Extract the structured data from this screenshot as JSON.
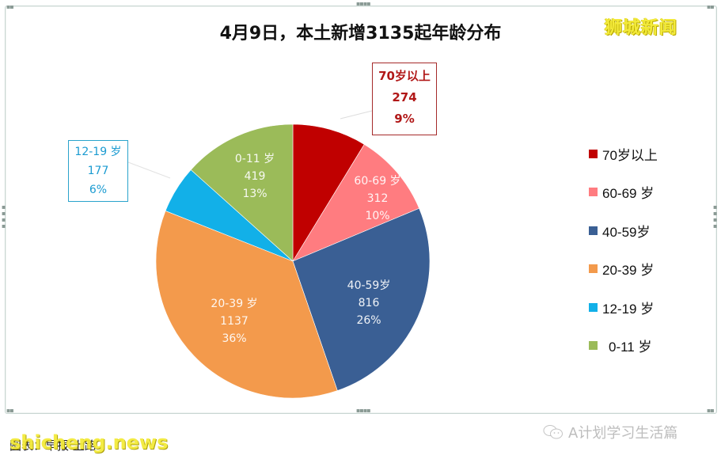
{
  "title": "4月9日，本土新增3135起年龄分布",
  "watermark_top": "狮城新闻",
  "callouts": {
    "age70": {
      "label": "70岁以上",
      "value": "274",
      "percent": "9%"
    },
    "age12": {
      "label": "12-19 岁",
      "value": "177",
      "percent": "6%"
    }
  },
  "slice_labels": {
    "age60": {
      "label": "60-69 岁",
      "value": "312",
      "percent": "10%"
    },
    "age40": {
      "label": "40-59岁",
      "value": "816",
      "percent": "26%"
    },
    "age20": {
      "label": "20-39 岁",
      "value": "1137",
      "percent": "36%"
    },
    "age0": {
      "label": "0-11 岁",
      "value": "419",
      "percent": "13%"
    }
  },
  "legend": [
    {
      "label": "70岁以上",
      "color": "#c00000"
    },
    {
      "label": "60-69 岁",
      "color": "#ff7c80"
    },
    {
      "label": "40-59岁",
      "color": "#3a5f94"
    },
    {
      "label": "20-39 岁",
      "color": "#f39a4c"
    },
    {
      "label": "12-19 岁",
      "color": "#12b0e8"
    },
    {
      "label": "0-11 岁",
      "color": "#9bbb59"
    }
  ],
  "footer": {
    "source": "图表：早报 上路",
    "watermark": "shicheng.news",
    "account": "A计划学习生活篇"
  },
  "chart_data": {
    "type": "pie",
    "title": "4月9日，本土新增3135起年龄分布",
    "categories": [
      "70岁以上",
      "60-69 岁",
      "40-59岁",
      "20-39 岁",
      "12-19 岁",
      "0-11 岁"
    ],
    "values": [
      274,
      312,
      816,
      1137,
      177,
      419
    ],
    "percents": [
      9,
      10,
      26,
      36,
      6,
      13
    ],
    "colors": [
      "#c00000",
      "#ff7c80",
      "#3a5f94",
      "#f39a4c",
      "#12b0e8",
      "#9bbb59"
    ],
    "total": 3135,
    "start_angle": "12 o'clock",
    "direction": "clockwise",
    "legend_position": "right"
  }
}
